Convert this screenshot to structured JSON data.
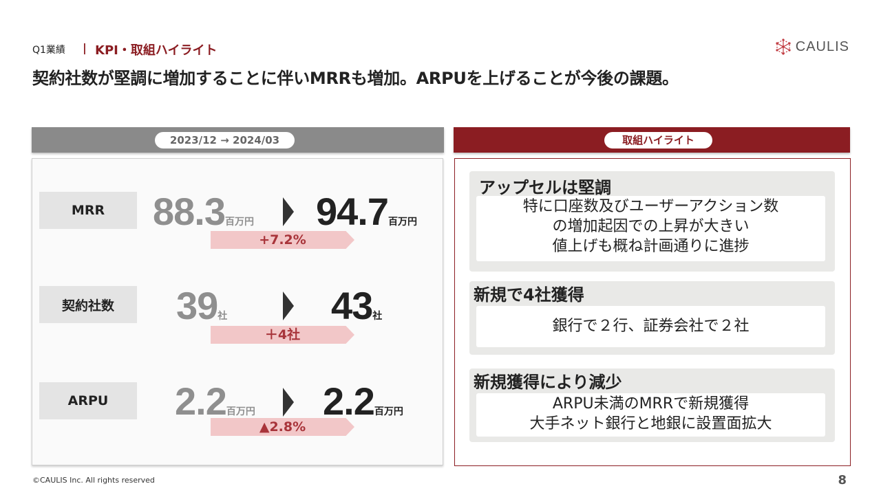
{
  "header": {
    "section_label": "Q1業績",
    "separator": "|",
    "section_title": "KPI・取組ハイライト",
    "headline": "契約社数が堅調に増加することに伴いMRRも増加。ARPUを上げることが今後の課題。"
  },
  "logo": {
    "text": "CAULIS",
    "icon": "network-asterisk-icon",
    "color": "#c0393f"
  },
  "left_panel": {
    "period": "2023/12 → 2024/03",
    "kpis": [
      {
        "label": "MRR",
        "before": "88.3",
        "before_unit": "百万円",
        "after": "94.7",
        "after_unit": "百万円",
        "change": "+7.2%"
      },
      {
        "label": "契約社数",
        "before": "39",
        "before_unit": "社",
        "after": "43",
        "after_unit": "社",
        "change": "＋4社"
      },
      {
        "label": "ARPU",
        "before": "2.2",
        "before_unit": "百万円",
        "after": "2.2",
        "after_unit": "百万円",
        "change": "▲2.8%"
      }
    ]
  },
  "right_panel": {
    "title": "取組ハイライト",
    "items": [
      {
        "title": "アップセルは堅調",
        "lines": [
          "特に口座数及びユーザーアクション数",
          "の増加起因での上昇が大きい",
          "値上げも概ね計画通りに進捗"
        ]
      },
      {
        "title": "新規で4社獲得",
        "lines": [
          "銀行で２行、証券会社で２社"
        ]
      },
      {
        "title": "新規獲得により減少",
        "lines": [
          "ARPU未満のMRRで新規獲得",
          "大手ネット銀行と地銀に設置面拡大"
        ]
      }
    ]
  },
  "colors": {
    "accent": "#8b1d22",
    "grey_header": "#8a8a8a",
    "change_band": "#f2c7c8",
    "change_text": "#a8343a"
  },
  "footer": {
    "copyright": "©CAULIS Inc. All rights reserved",
    "page_number": "8"
  }
}
